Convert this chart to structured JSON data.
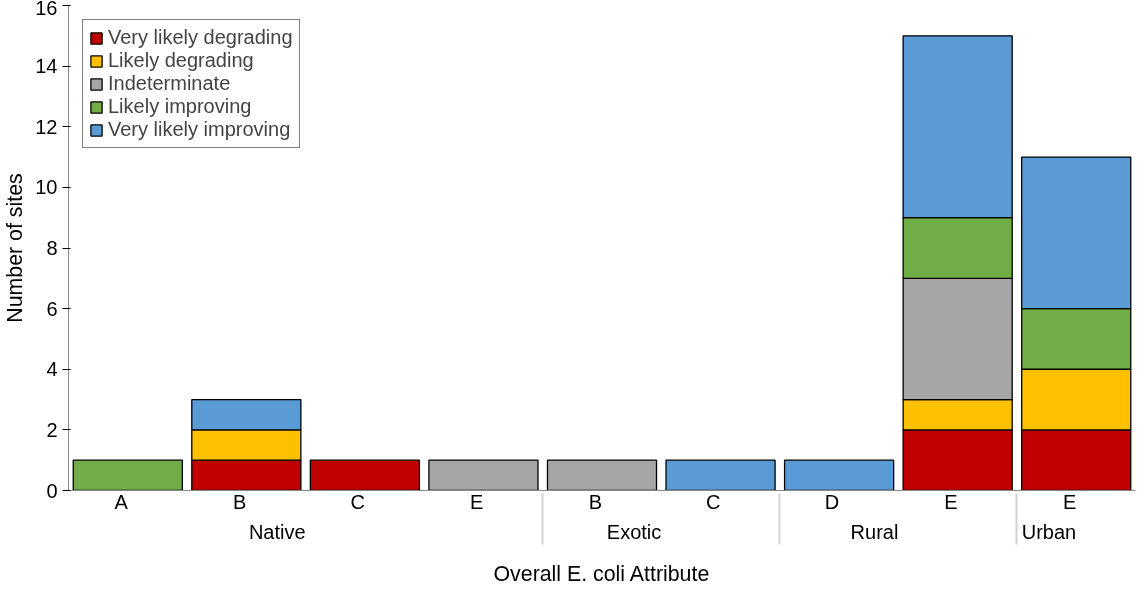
{
  "chart_data": {
    "type": "bar",
    "stacked": true,
    "xlabel": "Overall E. coli Attribute",
    "ylabel": "Number of sites",
    "categories": [
      [
        "Native",
        "A"
      ],
      [
        null,
        "B"
      ],
      [
        null,
        "C"
      ],
      [
        null,
        "E"
      ],
      [
        "Exotic",
        "B"
      ],
      [
        null,
        "C"
      ],
      [
        "Rural",
        "D"
      ],
      [
        null,
        "E"
      ],
      [
        "Urban",
        "E"
      ]
    ],
    "series": [
      {
        "name": "Very likely degrading",
        "color": "#c00000",
        "values": [
          0,
          1,
          1,
          0,
          0,
          0,
          0,
          2,
          2
        ]
      },
      {
        "name": "Likely degrading",
        "color": "#ffc000",
        "values": [
          0,
          1,
          0,
          0,
          0,
          0,
          0,
          1,
          2
        ]
      },
      {
        "name": "Indeterminate",
        "color": "#a5a5a5",
        "values": [
          0,
          0,
          0,
          1,
          1,
          0,
          0,
          4,
          0
        ]
      },
      {
        "name": "Likely improving",
        "color": "#70ad47",
        "values": [
          1,
          0,
          0,
          0,
          0,
          0,
          0,
          2,
          2
        ]
      },
      {
        "name": "Very likely improving",
        "color": "#5b9bd5",
        "values": [
          0,
          1,
          0,
          0,
          0,
          1,
          1,
          6,
          5
        ]
      }
    ],
    "ylim": [
      0,
      16
    ],
    "yticks": [
      0,
      2,
      4,
      6,
      8,
      10,
      12,
      14,
      16
    ],
    "grid": false,
    "legend": "top left"
  }
}
